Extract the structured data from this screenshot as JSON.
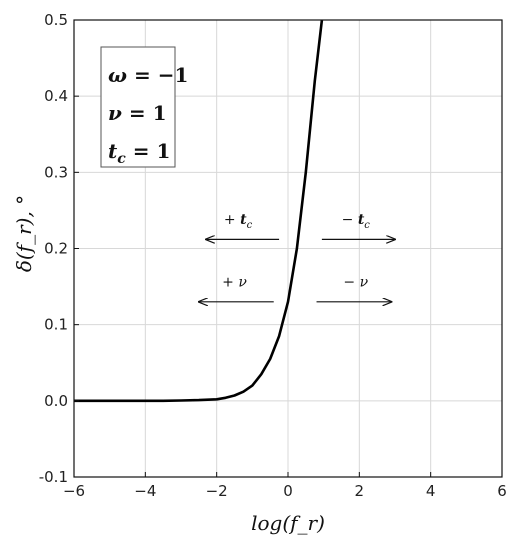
{
  "chart_data": {
    "type": "line",
    "title": "",
    "xlabel": "log(f_r)",
    "ylabel": "δ(f_r), °",
    "xlim": [
      -6,
      6
    ],
    "ylim": [
      -0.1,
      0.5
    ],
    "xticks": [
      -6,
      -4,
      -2,
      0,
      2,
      4,
      6
    ],
    "yticks": [
      -0.1,
      0.0,
      0.1,
      0.2,
      0.3,
      0.4,
      0.5
    ],
    "grid": true,
    "series": [
      {
        "x": [
          -6,
          -5,
          -4,
          -3.5,
          -3,
          -2.5,
          -2,
          -1.75,
          -1.5,
          -1.25,
          -1,
          -0.75,
          -0.5,
          -0.25,
          0,
          0.25,
          0.5,
          0.75,
          0.95
        ],
        "y": [
          0.0,
          0.0,
          0.0,
          0.0,
          0.0005,
          0.001,
          0.002,
          0.004,
          0.007,
          0.012,
          0.02,
          0.035,
          0.055,
          0.085,
          0.13,
          0.2,
          0.3,
          0.42,
          0.5
        ]
      }
    ],
    "legend_box": {
      "placement": "top-left",
      "lines": [
        {
          "sym": "ω",
          "sub": "",
          "eq": " = −1"
        },
        {
          "sym": "ν",
          "sub": "",
          "eq": " = 1"
        },
        {
          "sym": "t",
          "sub": "c",
          "eq": " = 1"
        }
      ]
    },
    "annotations": [
      {
        "text": "+ t",
        "sub": "c",
        "direction": "left",
        "y": 0.212,
        "x_from": -0.25,
        "x_to": -2.3,
        "text_x": -1.4,
        "text_y": 0.232
      },
      {
        "text": "− t",
        "sub": "c",
        "direction": "right",
        "y": 0.212,
        "x_from": 0.95,
        "x_to": 3.0,
        "text_x": 1.9,
        "text_y": 0.232
      },
      {
        "text": "+ ν",
        "sub": "",
        "direction": "left",
        "y": 0.13,
        "x_from": -0.4,
        "x_to": -2.5,
        "text_x": -1.5,
        "text_y": 0.15
      },
      {
        "text": "− ν",
        "sub": "",
        "direction": "right",
        "y": 0.13,
        "x_from": 0.8,
        "x_to": 2.9,
        "text_x": 1.9,
        "text_y": 0.15
      }
    ]
  }
}
